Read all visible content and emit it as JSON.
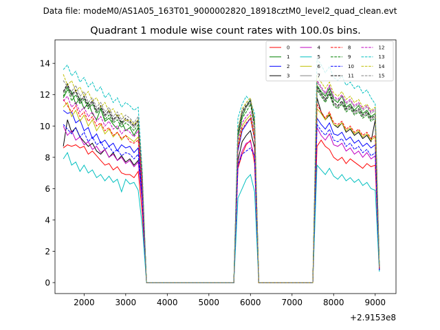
{
  "suptitle": "Data file: modeM0/AS1A05_163T01_9000002820_18918cztM0_level2_quad_clean.evt",
  "chart_data": {
    "type": "line",
    "title": "Quadrant 1 module wise count rates with 100.0s bins.",
    "xlabel": "",
    "ylabel": "",
    "x_offset_label": "+2.9153e8",
    "xlim": [
      1300,
      9500
    ],
    "ylim": [
      -0.7,
      15.5
    ],
    "xticks": [
      2000,
      3000,
      4000,
      5000,
      6000,
      7000,
      8000,
      9000
    ],
    "yticks": [
      0,
      2,
      4,
      6,
      8,
      10,
      12,
      14
    ],
    "legend_position": "top-right",
    "segments": [
      {
        "name": "seg1",
        "x": [
          1500,
          1600,
          1700,
          1800,
          1900,
          2000,
          2100,
          2200,
          2300,
          2400,
          2500,
          2600,
          2700,
          2800,
          2900,
          3000,
          3100,
          3200,
          3300,
          3400,
          3500
        ]
      },
      {
        "name": "seg2",
        "x": [
          5600,
          5700,
          5800,
          5900,
          6000,
          6100,
          6200
        ]
      },
      {
        "name": "seg3",
        "x": [
          7400,
          7500,
          7600,
          7700,
          7800,
          7900,
          8000,
          8100,
          8200,
          8300,
          8400,
          8500,
          8600,
          8700,
          8800,
          8900,
          9000,
          9100
        ]
      }
    ],
    "gaps": [
      {
        "x": [
          3500,
          5600
        ],
        "y": 0
      },
      {
        "x": [
          6200,
          7400
        ],
        "y": 0
      }
    ],
    "series": [
      {
        "name": "0",
        "color": "#ff0000",
        "dash": "solid",
        "start": [
          8.6,
          8.8,
          8.7,
          8.8,
          8.6,
          8.7,
          8.2,
          8.4,
          8.1,
          7.8,
          7.5,
          7.6,
          7.2,
          7.4,
          7.0,
          6.9,
          6.9,
          6.7,
          7.1,
          4.4,
          0
        ],
        "mid": [
          0,
          7.3,
          8.2,
          8.8,
          9.1,
          7.6,
          0
        ],
        "end": [
          0,
          0,
          8.7,
          9.1,
          8.7,
          8.5,
          8.0,
          7.8,
          8.0,
          7.6,
          7.9,
          7.7,
          7.5,
          7.3,
          7.6,
          7.4,
          7.5,
          0.8
        ]
      },
      {
        "name": "1",
        "color": "#008000",
        "dash": "solid",
        "start": [
          11.8,
          12.3,
          12.2,
          11.4,
          11.8,
          11.1,
          11.5,
          10.8,
          10.4,
          11.1,
          10.3,
          10.5,
          10.1,
          9.8,
          10.3,
          9.7,
          9.9,
          9.4,
          9.9,
          6.4,
          0
        ],
        "mid": [
          0,
          9.3,
          10.6,
          11.2,
          11.7,
          10.2,
          0
        ],
        "end": [
          0,
          0,
          12.6,
          12.2,
          11.9,
          12.4,
          11.7,
          11.5,
          11.9,
          11.2,
          11.4,
          11.0,
          11.3,
          10.8,
          11.0,
          10.6,
          10.8,
          1.0
        ]
      },
      {
        "name": "2",
        "color": "#0000ff",
        "dash": "solid",
        "start": [
          11.0,
          10.8,
          10.9,
          10.2,
          10.4,
          9.7,
          9.9,
          9.2,
          9.5,
          8.9,
          9.1,
          8.7,
          8.9,
          8.4,
          8.8,
          8.6,
          8.7,
          8.3,
          8.6,
          5.7,
          0
        ],
        "mid": [
          0,
          8.4,
          9.7,
          10.1,
          10.5,
          9.2,
          0
        ],
        "end": [
          0,
          0,
          10.5,
          10.1,
          9.8,
          10.2,
          9.5,
          9.4,
          9.6,
          9.1,
          9.3,
          8.9,
          9.1,
          8.7,
          8.9,
          8.6,
          8.8,
          0.9
        ]
      },
      {
        "name": "3",
        "color": "#000000",
        "dash": "solid",
        "start": [
          8.7,
          10.4,
          9.6,
          9.9,
          9.3,
          9.0,
          8.7,
          8.9,
          8.4,
          8.2,
          8.5,
          8.0,
          8.3,
          7.8,
          8.1,
          7.7,
          7.9,
          7.5,
          7.8,
          5.2,
          0
        ],
        "mid": [
          0,
          7.8,
          9.0,
          9.4,
          9.7,
          8.6,
          0
        ],
        "end": [
          0,
          0,
          11.8,
          10.9,
          10.4,
          10.7,
          10.1,
          9.9,
          10.2,
          9.6,
          9.8,
          9.4,
          9.6,
          9.2,
          9.4,
          9.0,
          10.4,
          0.8
        ]
      },
      {
        "name": "4",
        "color": "#c000c0",
        "dash": "solid",
        "start": [
          10.0,
          9.4,
          9.7,
          9.1,
          9.3,
          8.8,
          9.0,
          8.5,
          8.7,
          8.3,
          8.5,
          8.0,
          8.2,
          7.8,
          8.0,
          7.6,
          7.8,
          7.4,
          7.7,
          5.1,
          0
        ],
        "mid": [
          0,
          7.5,
          8.4,
          8.9,
          9.0,
          8.0,
          0
        ],
        "end": [
          0,
          0,
          9.9,
          9.4,
          9.1,
          9.5,
          8.8,
          8.7,
          8.9,
          8.4,
          8.6,
          8.2,
          8.4,
          8.0,
          8.3,
          7.9,
          8.1,
          0.8
        ]
      },
      {
        "name": "5",
        "color": "#00bfbf",
        "dash": "solid",
        "start": [
          7.9,
          8.3,
          7.5,
          7.7,
          7.1,
          7.5,
          7.0,
          7.2,
          6.7,
          6.9,
          6.5,
          6.8,
          6.4,
          6.6,
          5.8,
          6.6,
          6.3,
          6.4,
          5.9,
          3.6,
          0
        ],
        "mid": [
          0,
          5.4,
          6.0,
          6.6,
          6.9,
          5.8,
          0
        ],
        "end": [
          0,
          0,
          7.5,
          7.2,
          6.9,
          7.3,
          6.8,
          6.6,
          6.9,
          6.5,
          6.7,
          6.4,
          6.6,
          6.2,
          6.4,
          6.0,
          5.9,
          0.7
        ]
      },
      {
        "name": "6",
        "color": "#bfbf00",
        "dash": "solid",
        "start": [
          11.2,
          11.5,
          10.6,
          11.0,
          10.3,
          10.7,
          10.0,
          10.4,
          9.7,
          10.1,
          9.5,
          9.8,
          9.3,
          9.6,
          9.1,
          9.4,
          9.2,
          9.0,
          9.3,
          6.0,
          0
        ],
        "mid": [
          0,
          8.7,
          10.0,
          10.4,
          10.7,
          9.4,
          0
        ],
        "end": [
          0,
          0,
          11.1,
          10.8,
          10.4,
          10.8,
          10.1,
          10.0,
          10.2,
          9.7,
          9.9,
          9.5,
          9.7,
          9.3,
          9.5,
          9.1,
          9.3,
          0.9
        ]
      },
      {
        "name": "7",
        "color": "#808080",
        "dash": "solid",
        "start": [
          12.1,
          12.6,
          11.9,
          12.2,
          11.5,
          11.8,
          11.2,
          11.5,
          10.9,
          11.2,
          10.6,
          10.9,
          10.3,
          10.6,
          10.1,
          10.4,
          10.2,
          9.9,
          10.3,
          6.6,
          0
        ],
        "mid": [
          0,
          9.5,
          10.8,
          11.2,
          11.5,
          10.1,
          0
        ],
        "end": [
          0,
          0,
          12.4,
          12.0,
          11.6,
          12.1,
          11.4,
          11.2,
          11.5,
          11.0,
          11.2,
          10.8,
          11.0,
          10.6,
          10.8,
          10.4,
          10.6,
          1.0
        ]
      },
      {
        "name": "8",
        "color": "#ff0000",
        "dash": "dashed",
        "start": [
          11.7,
          11.3,
          10.9,
          11.3,
          10.6,
          10.9,
          10.3,
          10.6,
          10.0,
          10.2,
          9.7,
          9.9,
          9.4,
          9.6,
          9.2,
          9.4,
          9.0,
          8.9,
          9.1,
          5.9,
          0
        ],
        "mid": [
          0,
          8.6,
          9.8,
          10.2,
          10.5,
          9.1,
          0
        ],
        "end": [
          0,
          0,
          11.4,
          10.9,
          10.5,
          10.9,
          10.2,
          10.1,
          10.3,
          9.8,
          10.0,
          9.6,
          9.8,
          9.4,
          9.6,
          9.2,
          9.4,
          0.9
        ]
      },
      {
        "name": "9",
        "color": "#008000",
        "dash": "dashed",
        "start": [
          11.9,
          12.5,
          11.6,
          12.0,
          11.4,
          11.7,
          11.1,
          11.4,
          10.8,
          11.1,
          10.4,
          10.7,
          10.2,
          10.4,
          9.9,
          10.2,
          10.0,
          9.7,
          10.1,
          6.5,
          0
        ],
        "mid": [
          0,
          9.3,
          10.5,
          10.9,
          11.4,
          9.9,
          0
        ],
        "end": [
          0,
          0,
          12.3,
          11.9,
          11.5,
          12.0,
          11.3,
          11.1,
          11.4,
          10.9,
          11.1,
          10.7,
          10.9,
          10.5,
          10.7,
          10.3,
          10.5,
          1.0
        ]
      },
      {
        "name": "10",
        "color": "#0000ff",
        "dash": "dashed",
        "start": [
          10.1,
          9.8,
          9.5,
          9.9,
          9.3,
          9.6,
          9.0,
          9.3,
          8.8,
          9.0,
          8.5,
          8.7,
          8.3,
          8.5,
          8.1,
          8.3,
          8.2,
          7.9,
          8.2,
          5.3,
          0
        ],
        "mid": [
          0,
          7.5,
          8.2,
          8.4,
          8.6,
          8.1,
          0
        ],
        "end": [
          0,
          0,
          10.1,
          9.7,
          9.4,
          9.8,
          9.1,
          9.0,
          9.2,
          8.7,
          8.9,
          8.5,
          8.7,
          8.3,
          8.5,
          8.1,
          8.3,
          0.8
        ]
      },
      {
        "name": "11",
        "color": "#000000",
        "dash": "dashed",
        "start": [
          12.2,
          12.7,
          12.0,
          12.3,
          11.6,
          11.9,
          11.3,
          11.6,
          11.0,
          11.3,
          10.7,
          11.0,
          10.4,
          10.7,
          10.2,
          10.5,
          10.3,
          10.0,
          10.4,
          6.7,
          0
        ],
        "mid": [
          0,
          9.6,
          10.9,
          11.3,
          11.6,
          10.2,
          0
        ],
        "end": [
          0,
          0,
          12.5,
          12.1,
          11.7,
          12.2,
          11.5,
          11.3,
          11.6,
          11.1,
          11.3,
          10.9,
          11.1,
          10.7,
          10.9,
          10.5,
          10.7,
          1.0
        ]
      },
      {
        "name": "12",
        "color": "#c000c0",
        "dash": "dashed",
        "start": [
          11.6,
          11.9,
          11.2,
          11.5,
          10.9,
          11.2,
          10.6,
          10.9,
          10.3,
          10.6,
          10.0,
          10.3,
          9.8,
          10.0,
          9.5,
          9.8,
          9.6,
          9.3,
          9.7,
          6.2,
          0
        ],
        "mid": [
          0,
          9.0,
          10.2,
          10.6,
          10.9,
          9.6,
          0
        ],
        "end": [
          0,
          0,
          12.9,
          12.5,
          12.1,
          12.6,
          11.9,
          11.7,
          12.0,
          11.5,
          11.7,
          11.3,
          11.5,
          11.1,
          11.3,
          10.9,
          11.1,
          1.0
        ]
      },
      {
        "name": "13",
        "color": "#00bfbf",
        "dash": "dashed",
        "start": [
          13.6,
          13.9,
          13.2,
          13.5,
          12.8,
          13.1,
          12.5,
          12.8,
          12.2,
          12.5,
          11.8,
          12.1,
          11.5,
          11.8,
          11.2,
          11.5,
          11.3,
          11.0,
          11.2,
          7.1,
          0
        ],
        "mid": [
          0,
          10.5,
          11.4,
          11.9,
          11.6,
          10.8,
          0
        ],
        "end": [
          0,
          0,
          14.3,
          13.9,
          13.4,
          13.8,
          13.1,
          12.9,
          13.2,
          12.6,
          12.8,
          12.4,
          12.6,
          12.1,
          12.3,
          11.8,
          11.4,
          1.1
        ]
      },
      {
        "name": "14",
        "color": "#bfbf00",
        "dash": "dashed",
        "start": [
          13.3,
          12.6,
          12.9,
          12.2,
          12.5,
          11.9,
          12.2,
          11.6,
          11.8,
          11.2,
          11.5,
          10.9,
          11.1,
          10.6,
          10.8,
          10.3,
          10.4,
          10.1,
          10.4,
          6.8,
          0
        ],
        "mid": [
          0,
          9.8,
          11.1,
          11.5,
          11.8,
          10.4,
          0
        ],
        "end": [
          0,
          0,
          13.2,
          12.8,
          12.4,
          12.8,
          12.1,
          11.9,
          12.2,
          11.7,
          11.9,
          11.5,
          11.7,
          11.2,
          11.4,
          11.0,
          11.2,
          1.0
        ]
      },
      {
        "name": "15",
        "color": "#808080",
        "dash": "dashed",
        "start": [
          12.9,
          12.5,
          12.2,
          12.6,
          11.9,
          12.2,
          11.5,
          11.8,
          11.2,
          11.5,
          10.9,
          11.2,
          10.6,
          10.9,
          10.4,
          10.7,
          10.5,
          10.2,
          10.6,
          6.8,
          0
        ],
        "mid": [
          0,
          9.7,
          11.0,
          11.4,
          11.7,
          10.3,
          0
        ],
        "end": [
          0,
          0,
          12.8,
          12.4,
          12.0,
          12.5,
          11.8,
          11.6,
          11.9,
          11.4,
          11.6,
          11.2,
          11.4,
          11.0,
          11.2,
          10.8,
          11.0,
          1.0
        ]
      }
    ]
  }
}
